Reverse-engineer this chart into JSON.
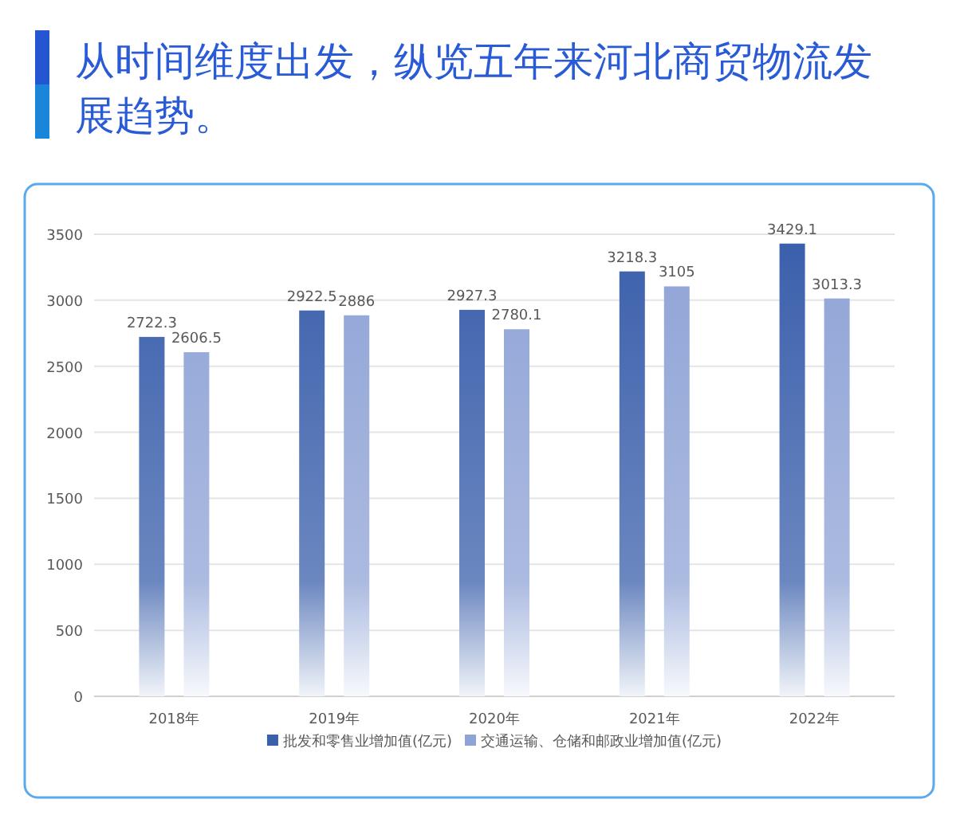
{
  "chart_data": {
    "type": "bar",
    "title": "从时间维度出发，纵览五年来河北商贸物流发展趋势。",
    "categories": [
      "2018年",
      "2019年",
      "2020年",
      "2021年",
      "2022年"
    ],
    "series": [
      {
        "name": "批发和零售业增加值(亿元)",
        "color": "#3a5fab",
        "values": [
          2722.3,
          2922.5,
          2927.3,
          3218.3,
          3429.1
        ]
      },
      {
        "name": "交通运输、仓储和邮政业增加值(亿元)",
        "color": "#8fa3d6",
        "values": [
          2606.5,
          2886,
          2780.1,
          3105,
          3013.3
        ]
      }
    ],
    "ylim": [
      0,
      3500
    ],
    "yticks": [
      0,
      500,
      1000,
      1500,
      2000,
      2500,
      3000,
      3500
    ],
    "grid": "y",
    "legend": "bottom",
    "data_labels": true
  }
}
